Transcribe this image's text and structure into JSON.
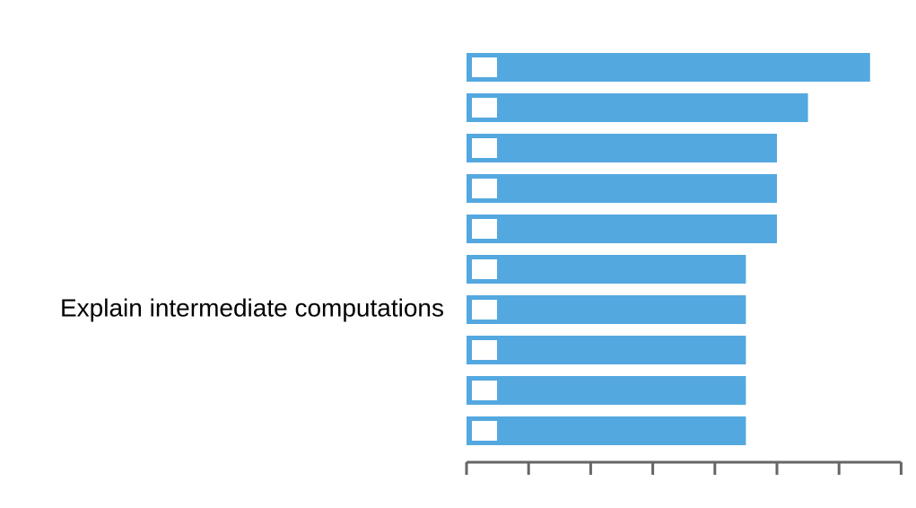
{
  "chart_data": {
    "type": "bar",
    "orientation": "horizontal",
    "categories": [
      "",
      "",
      "",
      "",
      "",
      "",
      "Explain intermediate computations",
      "",
      "",
      ""
    ],
    "values": [
      13,
      11,
      10,
      10,
      10,
      9,
      9,
      9,
      9,
      9
    ],
    "xlim": [
      0,
      14
    ],
    "x_ticks": [
      0,
      2,
      4,
      6,
      8,
      10,
      12,
      14
    ],
    "title": "",
    "xlabel": "",
    "ylabel": "",
    "grid": false,
    "legend": "none",
    "colors": {
      "bar": "#54a8e0",
      "axis": "#666666",
      "text": "#000000",
      "badge": "#ffffff"
    }
  }
}
